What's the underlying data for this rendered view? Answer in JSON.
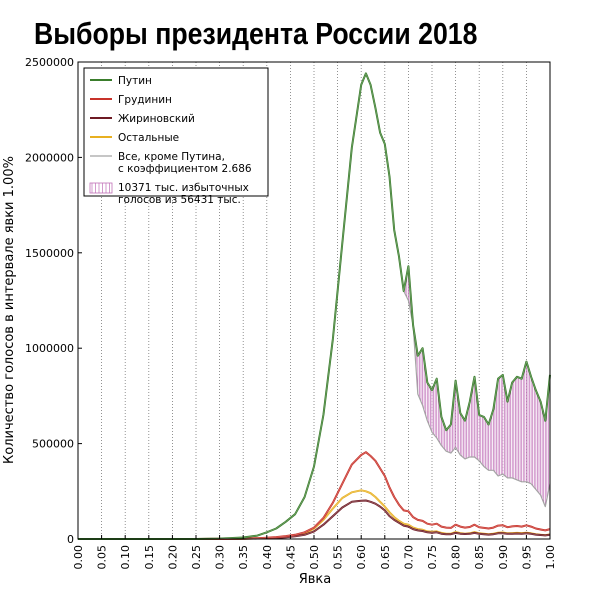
{
  "chart_data": {
    "type": "line",
    "title": "Выборы президента России 2018",
    "xlabel": "Явка",
    "ylabel": "Количество голосов в интервале явки 1.00%",
    "xlim": [
      0,
      1
    ],
    "ylim": [
      0,
      2500000
    ],
    "grid": "vertical dotted",
    "legend_position": "top-left",
    "x_ticks": [
      "0.00",
      "0.05",
      "0.10",
      "0.15",
      "0.20",
      "0.25",
      "0.30",
      "0.35",
      "0.40",
      "0.45",
      "0.50",
      "0.55",
      "0.60",
      "0.65",
      "0.70",
      "0.75",
      "0.80",
      "0.85",
      "0.90",
      "0.95",
      "1.00"
    ],
    "y_ticks": [
      "0",
      "500000",
      "1000000",
      "1500000",
      "2000000",
      "2500000"
    ],
    "legend": [
      {
        "label": "Путин",
        "color": "#3a7d2c",
        "kind": "line"
      },
      {
        "label": "Грудинин",
        "color": "#c8322a",
        "kind": "line"
      },
      {
        "label": "Жириновский",
        "color": "#6e1a24",
        "kind": "line"
      },
      {
        "label": "Остальные",
        "color": "#e8b020",
        "kind": "line"
      },
      {
        "label": "Все, кроме Путина,",
        "label2": "с коэффициентом 2.686",
        "color": "#a5a5a5",
        "kind": "line"
      },
      {
        "label": "10371 тыс. избыточных",
        "label2": "голосов из 56431 тыс.",
        "color": "#c070b8",
        "kind": "hatch"
      }
    ],
    "x": [
      0.0,
      0.05,
      0.1,
      0.15,
      0.2,
      0.25,
      0.3,
      0.35,
      0.38,
      0.4,
      0.42,
      0.44,
      0.46,
      0.48,
      0.5,
      0.52,
      0.54,
      0.56,
      0.58,
      0.6,
      0.61,
      0.62,
      0.63,
      0.64,
      0.65,
      0.66,
      0.67,
      0.68,
      0.69,
      0.7,
      0.71,
      0.72,
      0.73,
      0.74,
      0.75,
      0.76,
      0.77,
      0.78,
      0.79,
      0.8,
      0.81,
      0.82,
      0.83,
      0.84,
      0.85,
      0.86,
      0.87,
      0.88,
      0.89,
      0.9,
      0.91,
      0.92,
      0.93,
      0.94,
      0.95,
      0.96,
      0.97,
      0.98,
      0.99,
      1.0
    ],
    "series": [
      {
        "name": "Путин",
        "values": [
          0,
          0,
          0,
          0,
          0,
          0,
          2000,
          8000,
          18000,
          35000,
          55000,
          90000,
          130000,
          220000,
          380000,
          650000,
          1050000,
          1550000,
          2050000,
          2380000,
          2440000,
          2380000,
          2260000,
          2130000,
          2070000,
          1900000,
          1620000,
          1480000,
          1300000,
          1430000,
          1120000,
          960000,
          1000000,
          820000,
          780000,
          840000,
          640000,
          570000,
          600000,
          830000,
          660000,
          620000,
          720000,
          850000,
          650000,
          640000,
          600000,
          680000,
          840000,
          860000,
          720000,
          820000,
          850000,
          840000,
          930000,
          850000,
          780000,
          720000,
          620000,
          860000
        ]
      },
      {
        "name": "Грудинин",
        "values": [
          0,
          0,
          0,
          0,
          0,
          0,
          500,
          2000,
          4000,
          7000,
          10000,
          15000,
          22000,
          35000,
          60000,
          110000,
          190000,
          290000,
          390000,
          440000,
          455000,
          435000,
          410000,
          370000,
          330000,
          270000,
          220000,
          180000,
          150000,
          145000,
          115000,
          100000,
          95000,
          80000,
          75000,
          80000,
          65000,
          60000,
          58000,
          75000,
          65000,
          60000,
          63000,
          75000,
          62000,
          58000,
          55000,
          60000,
          70000,
          72000,
          62000,
          66000,
          68000,
          65000,
          72000,
          65000,
          55000,
          50000,
          45000,
          52000
        ]
      },
      {
        "name": "Жириновский",
        "values": [
          0,
          0,
          0,
          0,
          0,
          0,
          300,
          1000,
          2500,
          4000,
          6000,
          9000,
          14000,
          22000,
          40000,
          75000,
          120000,
          165000,
          195000,
          200000,
          202000,
          195000,
          185000,
          170000,
          150000,
          120000,
          100000,
          85000,
          70000,
          65000,
          52000,
          45000,
          42000,
          35000,
          33000,
          35000,
          28000,
          25000,
          25000,
          32000,
          28000,
          26000,
          27000,
          32000,
          27000,
          25000,
          23000,
          25000,
          30000,
          30000,
          27000,
          28000,
          29000,
          28000,
          30000,
          27000,
          23000,
          21000,
          19000,
          22000
        ]
      },
      {
        "name": "Остальные",
        "values": [
          0,
          0,
          0,
          0,
          0,
          0,
          300,
          1000,
          3000,
          5000,
          8000,
          12000,
          18000,
          30000,
          55000,
          100000,
          160000,
          215000,
          245000,
          255000,
          250000,
          240000,
          220000,
          195000,
          170000,
          140000,
          115000,
          95000,
          80000,
          75000,
          60000,
          52000,
          48000,
          40000,
          38000,
          40000,
          32000,
          28000,
          28000,
          36000,
          31000,
          28000,
          30000,
          36000,
          30000,
          27000,
          25000,
          28000,
          33000,
          34000,
          30000,
          31000,
          32000,
          31000,
          33000,
          30000,
          25000,
          22000,
          20000,
          24000
        ]
      },
      {
        "name": "Все, кроме Путина, с коэффициентом 2.686",
        "values": [
          0,
          0,
          0,
          0,
          0,
          0,
          2000,
          8000,
          18000,
          35000,
          55000,
          90000,
          130000,
          220000,
          380000,
          650000,
          1050000,
          1550000,
          2050000,
          2380000,
          2440000,
          2380000,
          2260000,
          2130000,
          2070000,
          1900000,
          1620000,
          1480000,
          1300000,
          1250000,
          1120000,
          760000,
          700000,
          620000,
          560000,
          530000,
          490000,
          460000,
          450000,
          480000,
          440000,
          420000,
          430000,
          430000,
          410000,
          380000,
          360000,
          360000,
          330000,
          340000,
          320000,
          320000,
          310000,
          300000,
          300000,
          290000,
          260000,
          230000,
          170000,
          290000
        ]
      }
    ],
    "hatch_region": {
      "between": [
        "Путин",
        "Все, кроме Путина, с коэффициентом 2.686"
      ],
      "from_x": 0.69
    }
  }
}
